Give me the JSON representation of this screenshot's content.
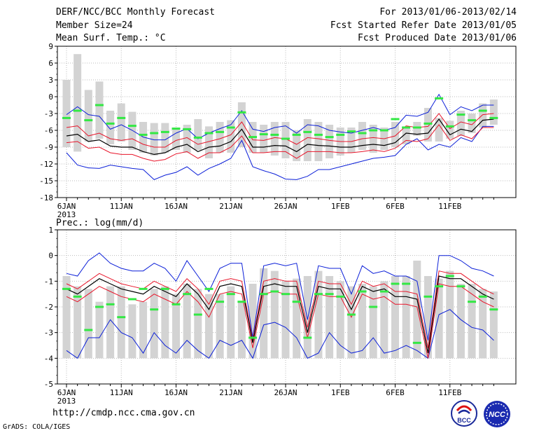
{
  "header": {
    "title": "DERF/NCC/BCC Monthly Forecast",
    "member": "Member Size=24",
    "variable": "Mean Surf. Temp.: °C",
    "period": "For 2013/01/06-2013/02/14",
    "started": "Fcst Started Refer Date 2013/01/05",
    "produced": "Fcst Produced Date 2013/01/06"
  },
  "footer": {
    "url": "http://cmdp.ncc.cma.gov.cn",
    "credit": "GrADS: COLA/IGES",
    "logo1_text": "BCC",
    "logo2_text": "NCC"
  },
  "colors": {
    "bars": "#d3d3d3",
    "median": "#000000",
    "iqr": "#e8152a",
    "range": "#0b1fd8",
    "obs": "#33e844",
    "grid": "#bbbbbb"
  },
  "chart_data": [
    {
      "type": "line",
      "title": "Mean Surf. Temp.: °C",
      "x_tick_labels": [
        "6JAN",
        "11JAN",
        "16JAN",
        "21JAN",
        "26JAN",
        "1FEB",
        "6FEB",
        "11FEB"
      ],
      "year_label": "2013",
      "x_count": 40,
      "ylim": [
        -18,
        9
      ],
      "yticks": [
        -18,
        -15,
        -12,
        -9,
        -6,
        -3,
        0,
        3,
        6,
        9
      ],
      "series": [
        {
          "name": "climatology_bars_top",
          "values": [
            3,
            7.6,
            1.2,
            2.7,
            -2.5,
            -1.2,
            -2.7,
            -4.5,
            -4.7,
            -4.7,
            -5.5,
            -5,
            -4,
            -5.3,
            -4.5,
            -4.2,
            -1,
            -4.5,
            -5,
            -4.5,
            -4.5,
            -6,
            -4,
            -4.5,
            -5,
            -5.5,
            -5.5,
            -4.5,
            -5,
            -5.5,
            -4.5,
            -5.3,
            -4.5,
            -2,
            -3.8,
            -4.3,
            -2.5,
            -3,
            -1.2,
            -0.5
          ]
        },
        {
          "name": "climatology_bars_bottom",
          "values": [
            -9,
            -9.8,
            -8,
            -7.5,
            -8.5,
            -8,
            -9.5,
            -10,
            -10.5,
            -10,
            -9.5,
            -10,
            -9.5,
            -11,
            -10,
            -10,
            -9,
            -10,
            -10,
            -10.5,
            -11,
            -11.5,
            -11.5,
            -11.5,
            -11,
            -10.5,
            -10,
            -9.5,
            -10,
            -9.5,
            -9,
            -8.5,
            -7,
            -8,
            -8,
            -7.5,
            -7,
            -6.5,
            -5.5,
            -5
          ]
        },
        {
          "name": "max",
          "values": [
            -3.2,
            -1.8,
            -3.2,
            -3.5,
            -5.8,
            -5,
            -6,
            -7.2,
            -7.7,
            -7.7,
            -6.5,
            -5.7,
            -7.5,
            -6.5,
            -5.7,
            -5,
            -2.5,
            -5.8,
            -6.2,
            -5.5,
            -5.2,
            -6.5,
            -5,
            -5.2,
            -6,
            -6.3,
            -6.5,
            -6,
            -5.5,
            -6,
            -5.5,
            -3.3,
            -3.5,
            -2.8,
            0.4,
            -3.2,
            -1.8,
            -2.5,
            -1.5,
            -1.5
          ]
        },
        {
          "name": "q75",
          "values": [
            -5.5,
            -5.2,
            -7,
            -6.5,
            -7.5,
            -7.8,
            -7.5,
            -8.5,
            -9,
            -9,
            -7.8,
            -7.3,
            -8.5,
            -8,
            -7.5,
            -6.8,
            -4.5,
            -7.7,
            -7.8,
            -7.3,
            -7.5,
            -8.5,
            -7.3,
            -7.5,
            -7.8,
            -8,
            -8,
            -7.5,
            -7.3,
            -7.5,
            -7,
            -5.2,
            -5.5,
            -5.3,
            -3,
            -5.7,
            -4.5,
            -5,
            -3.2,
            -3
          ]
        },
        {
          "name": "median",
          "values": [
            -7,
            -6.7,
            -8,
            -7.7,
            -8.8,
            -9,
            -9,
            -9.8,
            -10.3,
            -10,
            -9,
            -8.5,
            -9.8,
            -9,
            -8.8,
            -8,
            -5.8,
            -9,
            -9,
            -8.7,
            -8.8,
            -9.8,
            -8.5,
            -8.7,
            -8.8,
            -9,
            -9,
            -8.7,
            -8.5,
            -8.7,
            -8.2,
            -6.5,
            -6.7,
            -6.5,
            -4,
            -6.8,
            -5.8,
            -6.2,
            -4.2,
            -4
          ]
        },
        {
          "name": "q25",
          "values": [
            -8.2,
            -8,
            -9.2,
            -9,
            -10,
            -10.3,
            -10.3,
            -11,
            -11.5,
            -11.2,
            -10.2,
            -9.8,
            -11,
            -10,
            -10,
            -9,
            -7,
            -10,
            -10,
            -9.8,
            -9.8,
            -11,
            -9.8,
            -9.8,
            -9.8,
            -10,
            -10,
            -9.8,
            -9.5,
            -9.8,
            -9.2,
            -7.8,
            -8,
            -7.5,
            -5,
            -7.8,
            -6.8,
            -7.5,
            -5.5,
            -5.5
          ]
        },
        {
          "name": "min",
          "values": [
            -10,
            -12.2,
            -12.7,
            -12.8,
            -12.2,
            -12.5,
            -12.8,
            -13,
            -14.8,
            -14,
            -13.5,
            -12.5,
            -14,
            -12.8,
            -12,
            -11,
            -7.8,
            -12.5,
            -13.2,
            -13.8,
            -14.7,
            -14.8,
            -14.2,
            -13,
            -13,
            -12.5,
            -12,
            -11.5,
            -11,
            -10.8,
            -10.5,
            -8.5,
            -7.5,
            -9.5,
            -8.5,
            -9,
            -7.3,
            -8,
            -5.3,
            -5.3
          ]
        },
        {
          "name": "observed",
          "values": [
            -3.8,
            -2.5,
            -4.2,
            -1.5,
            -4.8,
            -3.8,
            -5.2,
            -6.8,
            -6.5,
            -6.3,
            -5.7,
            -5.8,
            -7.3,
            -6.5,
            -6.3,
            -5.5,
            -2.8,
            -7.2,
            -6.7,
            -6.8,
            -7.5,
            -6.8,
            -6.3,
            -6.8,
            -7.2,
            -6.8,
            -6.2,
            -6.5,
            -6,
            -6,
            -4,
            -5.5,
            -5.5,
            -4.8,
            -0.3,
            -5.3,
            -3.2,
            -4.2,
            -2.5,
            -3.8
          ]
        }
      ]
    },
    {
      "type": "line",
      "title": "Prec.: log(mm/d)",
      "x_tick_labels": [
        "6JAN",
        "11JAN",
        "16JAN",
        "21JAN",
        "26JAN",
        "1FEB",
        "6FEB",
        "11FEB"
      ],
      "year_label": "2013",
      "x_count": 40,
      "ylim": [
        -5,
        1
      ],
      "yticks": [
        -5,
        -4,
        -3,
        -2,
        -1,
        0,
        1
      ],
      "bar_base": -4,
      "series": [
        {
          "name": "climatology_bars",
          "values": [
            -0.8,
            -1.2,
            -1.3,
            -1.8,
            -1.2,
            -1.2,
            -1.9,
            -1.8,
            -1.3,
            -1.2,
            -1.5,
            -1.1,
            -1.3,
            -1.5,
            -1.5,
            -1.2,
            -1.8,
            -1.1,
            -0.5,
            -0.6,
            -1,
            -0.9,
            -0.8,
            -0.6,
            -0.8,
            -1,
            -1.2,
            -1.1,
            -1.2,
            -1,
            -0.8,
            -0.8,
            -0.2,
            -0.8,
            -0.9,
            -0.6,
            -1.1,
            -1.1,
            -1.3,
            -1.4
          ]
        },
        {
          "name": "max",
          "values": [
            -0.7,
            -0.8,
            -0.2,
            0.1,
            -0.3,
            -0.5,
            -0.6,
            -0.6,
            -0.3,
            -0.5,
            -1,
            -0.2,
            -0.8,
            -1.4,
            -0.5,
            -0.3,
            -0.3,
            -3.2,
            -0.4,
            -0.3,
            -0.4,
            -0.3,
            -2.5,
            -0.4,
            -0.5,
            -0.5,
            -1.5,
            -0.4,
            -0.7,
            -0.6,
            -0.8,
            -0.8,
            -1,
            -3.3,
            0,
            0,
            -0.2,
            -0.5,
            -0.6,
            -0.8
          ]
        },
        {
          "name": "q75",
          "values": [
            -1.1,
            -1.3,
            -1,
            -0.7,
            -0.9,
            -1.1,
            -1.2,
            -1.3,
            -1,
            -1.2,
            -1.4,
            -0.9,
            -1.3,
            -1.9,
            -1,
            -0.9,
            -1,
            -3.3,
            -1,
            -0.9,
            -1,
            -1,
            -2.8,
            -1,
            -1.1,
            -1.1,
            -1.9,
            -1,
            -1.2,
            -1.1,
            -1.4,
            -1.4,
            -1.5,
            -3.6,
            -0.6,
            -0.7,
            -0.7,
            -1,
            -1.3,
            -1.5
          ]
        },
        {
          "name": "median",
          "values": [
            -1.3,
            -1.5,
            -1.2,
            -0.9,
            -1.1,
            -1.3,
            -1.4,
            -1.5,
            -1.2,
            -1.4,
            -1.6,
            -1.1,
            -1.5,
            -2.1,
            -1.2,
            -1.1,
            -1.2,
            -3.4,
            -1.2,
            -1.1,
            -1.2,
            -1.2,
            -3,
            -1.2,
            -1.3,
            -1.3,
            -2.1,
            -1.2,
            -1.4,
            -1.3,
            -1.6,
            -1.6,
            -1.7,
            -3.8,
            -0.8,
            -0.9,
            -0.9,
            -1.2,
            -1.5,
            -1.7
          ]
        },
        {
          "name": "q25",
          "values": [
            -1.6,
            -1.8,
            -1.5,
            -1.2,
            -1.4,
            -1.6,
            -1.7,
            -1.8,
            -1.5,
            -1.7,
            -1.9,
            -1.4,
            -1.8,
            -2.4,
            -1.5,
            -1.4,
            -1.5,
            -3.6,
            -1.5,
            -1.4,
            -1.5,
            -1.5,
            -3.2,
            -1.5,
            -1.6,
            -1.6,
            -2.4,
            -1.5,
            -1.7,
            -1.6,
            -1.9,
            -1.9,
            -2,
            -4,
            -1.1,
            -1.2,
            -1.2,
            -1.5,
            -1.8,
            -2
          ]
        },
        {
          "name": "min",
          "values": [
            -3.7,
            -4,
            -3.2,
            -3.2,
            -2.5,
            -3,
            -3.2,
            -3.8,
            -3,
            -3.5,
            -3.8,
            -3.3,
            -3.7,
            -4,
            -3.3,
            -3.5,
            -3.3,
            -4,
            -2.7,
            -2.6,
            -2.8,
            -3.2,
            -4,
            -3.8,
            -3,
            -3.5,
            -3.8,
            -3.7,
            -3.2,
            -3.8,
            -3.7,
            -3.5,
            -3.7,
            -4,
            -2.3,
            -2.1,
            -2.5,
            -2.8,
            -2.9,
            -3.3
          ]
        },
        {
          "name": "observed",
          "values": [
            -1.3,
            -1.6,
            -2.9,
            -2,
            -1.9,
            -2.4,
            -1.7,
            -1.3,
            -2.1,
            -1.3,
            -1.9,
            -1.5,
            -2.3,
            -1.3,
            -1.8,
            -1.5,
            -1.8,
            -3.2,
            -1.5,
            -1.4,
            -1.5,
            -1.8,
            -3.2,
            -1.5,
            -1.5,
            -1.6,
            -2.3,
            -1.4,
            -2,
            -1.4,
            -1.1,
            -1.1,
            -3.4,
            -1.6,
            -1.2,
            -0.8,
            -1.2,
            -1.8,
            -1.6,
            -2.1
          ]
        }
      ]
    }
  ]
}
